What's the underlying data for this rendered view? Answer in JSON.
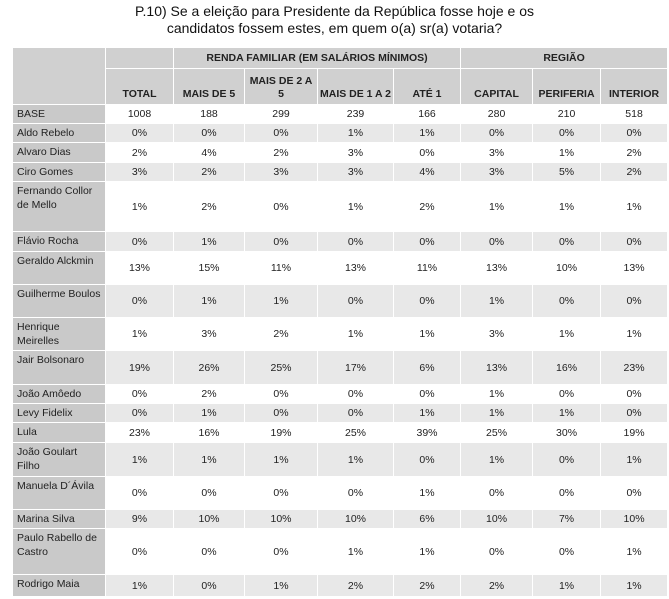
{
  "title_line1": "P.10) Se a eleição para Presidente da República fosse hoje e os",
  "title_line2": "candidatos fossem estes, em quem o(a) sr(a) votaria?",
  "group_headers": {
    "renda": "RENDA FAMILIAR (EM SALÁRIOS MÍNIMOS)",
    "regiao": "REGIÃO"
  },
  "columns": [
    "TOTAL",
    "MAIS DE 5",
    "MAIS DE 2 A 5",
    "MAIS DE 1 A 2",
    "ATÉ 1",
    "CAPITAL",
    "PERIFERIA",
    "INTERIOR"
  ],
  "rows": [
    {
      "label": "BASE",
      "values": [
        "1008",
        "188",
        "299",
        "239",
        "166",
        "280",
        "210",
        "518"
      ]
    },
    {
      "label": "Aldo Rebelo",
      "values": [
        "0%",
        "0%",
        "0%",
        "1%",
        "1%",
        "0%",
        "0%",
        "0%"
      ]
    },
    {
      "label": "Alvaro Dias",
      "values": [
        "2%",
        "4%",
        "2%",
        "3%",
        "0%",
        "3%",
        "1%",
        "2%"
      ]
    },
    {
      "label": "Ciro Gomes",
      "values": [
        "3%",
        "2%",
        "3%",
        "3%",
        "4%",
        "3%",
        "5%",
        "2%"
      ]
    },
    {
      "label": "Fernando Collor de Mello",
      "values": [
        "1%",
        "2%",
        "0%",
        "1%",
        "2%",
        "1%",
        "1%",
        "1%"
      ]
    },
    {
      "label": "Flávio Rocha",
      "values": [
        "0%",
        "1%",
        "0%",
        "0%",
        "0%",
        "0%",
        "0%",
        "0%"
      ]
    },
    {
      "label": "Geraldo Alckmin",
      "values": [
        "13%",
        "15%",
        "11%",
        "13%",
        "11%",
        "13%",
        "10%",
        "13%"
      ]
    },
    {
      "label": "Guilherme Boulos",
      "values": [
        "0%",
        "1%",
        "1%",
        "0%",
        "0%",
        "1%",
        "0%",
        "0%"
      ]
    },
    {
      "label": "Henrique Meirelles",
      "values": [
        "1%",
        "3%",
        "2%",
        "1%",
        "1%",
        "3%",
        "1%",
        "1%"
      ]
    },
    {
      "label": "Jair Bolsonaro",
      "values": [
        "19%",
        "26%",
        "25%",
        "17%",
        "6%",
        "13%",
        "16%",
        "23%"
      ]
    },
    {
      "label": "João Amôedo",
      "values": [
        "0%",
        "2%",
        "0%",
        "0%",
        "0%",
        "1%",
        "0%",
        "0%"
      ]
    },
    {
      "label": "Levy Fidelix",
      "values": [
        "0%",
        "1%",
        "0%",
        "0%",
        "1%",
        "1%",
        "1%",
        "0%"
      ]
    },
    {
      "label": "Lula",
      "values": [
        "23%",
        "16%",
        "19%",
        "25%",
        "39%",
        "25%",
        "30%",
        "19%"
      ]
    },
    {
      "label": "João Goulart Filho",
      "values": [
        "1%",
        "1%",
        "1%",
        "1%",
        "0%",
        "1%",
        "0%",
        "1%"
      ]
    },
    {
      "label": "Manuela D´Ávila",
      "values": [
        "0%",
        "0%",
        "0%",
        "0%",
        "1%",
        "0%",
        "0%",
        "0%"
      ]
    },
    {
      "label": "Marina Silva",
      "values": [
        "9%",
        "10%",
        "10%",
        "10%",
        "6%",
        "10%",
        "7%",
        "10%"
      ]
    },
    {
      "label": "Paulo Rabello de Castro",
      "values": [
        "0%",
        "0%",
        "0%",
        "1%",
        "1%",
        "0%",
        "0%",
        "1%"
      ]
    },
    {
      "label": "Rodrigo Maia",
      "values": [
        "1%",
        "0%",
        "1%",
        "2%",
        "2%",
        "2%",
        "1%",
        "1%"
      ]
    }
  ]
}
